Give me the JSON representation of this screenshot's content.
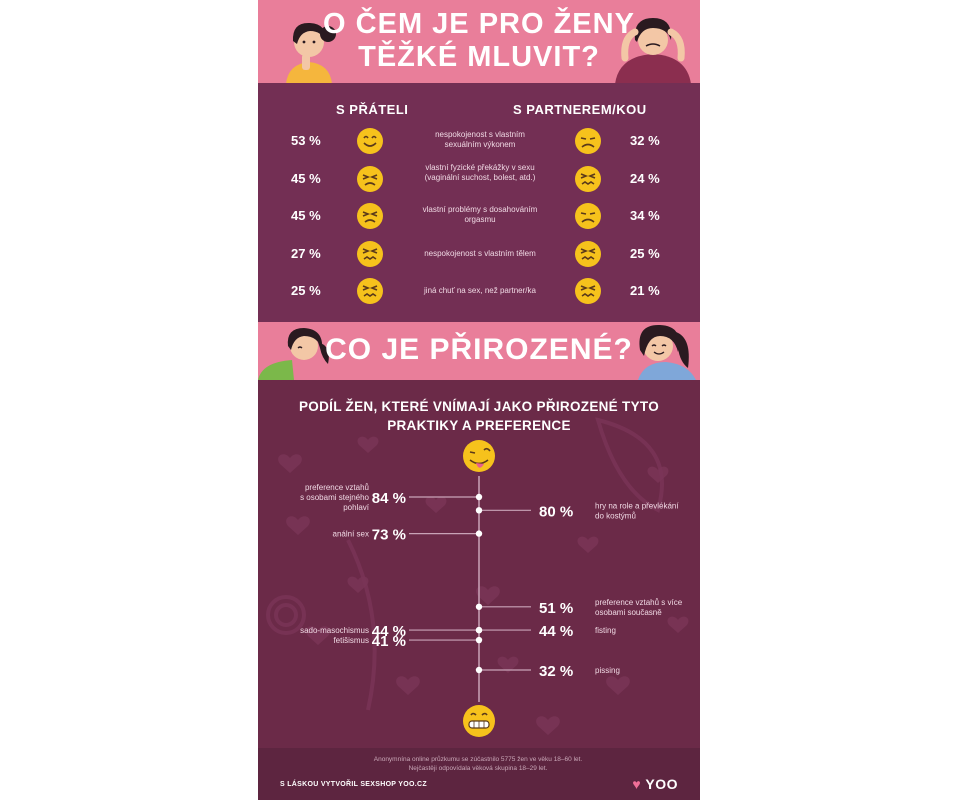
{
  "section1": {
    "title_line1": "O ČEM JE PRO ŽENY",
    "title_line2": "TĚŽKÉ MLUVIT?",
    "col_friends": "S PŘÁTELI",
    "col_partner": "S PARTNEREM/KOU",
    "rows": [
      {
        "friends": "53 %",
        "friends_face": "smile",
        "label_line1": "nespokojenost s vlastním",
        "label_line2": "sexuálním výkonem",
        "partner": "32 %",
        "partner_face": "frown"
      },
      {
        "friends": "45 %",
        "friends_face": "squint",
        "label_line1": "vlastní fyzické překážky v sexu",
        "label_line2": "(vaginální suchost, bolest, atd.)",
        "partner": "24 %",
        "partner_face": "confounded"
      },
      {
        "friends": "45 %",
        "friends_face": "squint",
        "label_line1": "vlastní problémy s dosahováním",
        "label_line2": "orgasmu",
        "partner": "34 %",
        "partner_face": "frown"
      },
      {
        "friends": "27 %",
        "friends_face": "confounded",
        "label_line1": "nespokojenost s vlastním tělem",
        "label_line2": "",
        "partner": "25 %",
        "partner_face": "confounded"
      },
      {
        "friends": "25 %",
        "friends_face": "confounded",
        "label_line1": "jiná chuť na sex, než partner/ka",
        "label_line2": "",
        "partner": "21 %",
        "partner_face": "confounded"
      }
    ]
  },
  "section2": {
    "title": "CO JE PŘIROZENÉ?"
  },
  "chart_data": {
    "type": "timeline",
    "title_line1": "PODÍL ŽEN, KTERÉ VNÍMAJÍ JAKO PŘIROZENÉ TYTO",
    "title_line2": "PRAKTIKY A PREFERENCE",
    "items": [
      {
        "value": 84,
        "value_label": "84 %",
        "side": "left",
        "label": [
          "preference vztahů",
          "s osobami stejného",
          "pohlaví"
        ]
      },
      {
        "value": 80,
        "value_label": "80 %",
        "side": "right",
        "label": [
          "hry na role a převlékání",
          "do kostýmů"
        ]
      },
      {
        "value": 73,
        "value_label": "73 %",
        "side": "left",
        "label": [
          "anální sex"
        ]
      },
      {
        "value": 51,
        "value_label": "51 %",
        "side": "right",
        "label": [
          "preference vztahů s více",
          "osobami současně"
        ]
      },
      {
        "value": 44,
        "value_label": "44 %",
        "side": "left",
        "label": [
          "sado-masochismus"
        ]
      },
      {
        "value": 44,
        "value_label": "44 %",
        "side": "right",
        "label": [
          "fisting"
        ]
      },
      {
        "value": 41,
        "value_label": "41 %",
        "side": "left",
        "label": [
          "fetišismus"
        ]
      },
      {
        "value": 32,
        "value_label": "32 %",
        "side": "right",
        "label": [
          "pissing"
        ]
      }
    ],
    "colors": {
      "accent": "#ffffff",
      "line": "#c9a3b7",
      "emoji": "#f6c21c"
    }
  },
  "footer": {
    "note_line1": "Anonymnína online průzkumu se zúčastnilo 5775 žen ve věku 18–60 let.",
    "note_line2": "Nejčastěji odpovídala věková skupina 18–29 let.",
    "credit": "S LÁSKOU VYTVOŘIL SEXSHOP YOO.CZ",
    "logo": "YOO"
  },
  "colors": {
    "pink": "#e97e9a",
    "plum": "#732f54",
    "plum_dark": "#6b2a48",
    "footer": "#5d2540",
    "emoji": "#f6c21c"
  }
}
